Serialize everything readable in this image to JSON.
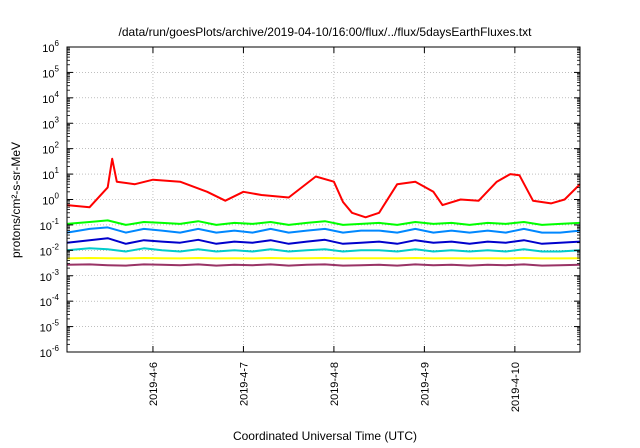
{
  "chart_data": {
    "type": "line",
    "title": "/data/run/goesPlots/archive/2019-04-10/16:00/flux/../flux/5daysEarthFluxes.txt",
    "xlabel": "Coordinated Universal Time (UTC)",
    "ylabel": "protons/cm²-s-sr-MeV",
    "y_scale": "log",
    "ylim": [
      1e-06,
      1000000.0
    ],
    "x_range_days": [
      5.05,
      10.72
    ],
    "x_ticks": [
      {
        "day": 6,
        "label": "2019-4-6"
      },
      {
        "day": 7,
        "label": "2019-4-7"
      },
      {
        "day": 8,
        "label": "2019-4-8"
      },
      {
        "day": 9,
        "label": "2019-4-9"
      },
      {
        "day": 10,
        "label": "2019-4-10"
      }
    ],
    "y_ticks": [
      {
        "exp": "6"
      },
      {
        "exp": "5"
      },
      {
        "exp": "4"
      },
      {
        "exp": "3"
      },
      {
        "exp": "2"
      },
      {
        "exp": "1"
      },
      {
        "exp": "0"
      },
      {
        "exp": "-1"
      },
      {
        "exp": "-2"
      },
      {
        "exp": "-3"
      },
      {
        "exp": "-4"
      },
      {
        "exp": "-5"
      },
      {
        "exp": "-6"
      }
    ],
    "grid": true,
    "series": [
      {
        "color": "#ff0000",
        "x": [
          5.05,
          5.3,
          5.5,
          5.55,
          5.6,
          5.8,
          6.0,
          6.3,
          6.6,
          6.8,
          7.0,
          7.2,
          7.5,
          7.8,
          8.0,
          8.1,
          8.2,
          8.35,
          8.5,
          8.7,
          8.9,
          9.1,
          9.2,
          9.4,
          9.6,
          9.8,
          9.95,
          10.05,
          10.2,
          10.4,
          10.55,
          10.72
        ],
        "y": [
          0.6,
          0.5,
          3,
          40,
          5,
          4,
          6,
          5,
          2,
          0.9,
          2,
          1.5,
          1.2,
          8,
          5,
          0.8,
          0.3,
          0.2,
          0.3,
          4,
          5,
          2,
          0.6,
          1,
          0.9,
          5,
          10,
          9,
          0.9,
          0.7,
          1,
          4
        ]
      },
      {
        "color": "#00ff00",
        "x": [
          5.05,
          5.3,
          5.5,
          5.7,
          5.9,
          6.1,
          6.3,
          6.5,
          6.7,
          6.9,
          7.1,
          7.3,
          7.5,
          7.7,
          7.9,
          8.1,
          8.3,
          8.5,
          8.7,
          8.9,
          9.1,
          9.3,
          9.5,
          9.7,
          9.9,
          10.1,
          10.3,
          10.5,
          10.72
        ],
        "y": [
          0.11,
          0.13,
          0.15,
          0.1,
          0.13,
          0.12,
          0.11,
          0.14,
          0.1,
          0.12,
          0.11,
          0.13,
          0.1,
          0.12,
          0.14,
          0.1,
          0.11,
          0.12,
          0.1,
          0.13,
          0.11,
          0.12,
          0.1,
          0.12,
          0.11,
          0.13,
          0.1,
          0.11,
          0.12
        ]
      },
      {
        "color": "#0088ff",
        "x": [
          5.05,
          5.3,
          5.5,
          5.7,
          5.9,
          6.1,
          6.3,
          6.5,
          6.7,
          6.9,
          7.1,
          7.3,
          7.5,
          7.7,
          7.9,
          8.1,
          8.3,
          8.5,
          8.7,
          8.9,
          9.1,
          9.3,
          9.5,
          9.7,
          9.9,
          10.1,
          10.3,
          10.5,
          10.72
        ],
        "y": [
          0.05,
          0.07,
          0.08,
          0.05,
          0.07,
          0.06,
          0.05,
          0.07,
          0.05,
          0.06,
          0.05,
          0.07,
          0.05,
          0.06,
          0.07,
          0.05,
          0.06,
          0.06,
          0.05,
          0.07,
          0.05,
          0.06,
          0.05,
          0.06,
          0.05,
          0.07,
          0.05,
          0.05,
          0.06
        ]
      },
      {
        "color": "#0000cc",
        "x": [
          5.05,
          5.3,
          5.5,
          5.7,
          5.9,
          6.1,
          6.3,
          6.5,
          6.7,
          6.9,
          7.1,
          7.3,
          7.5,
          7.7,
          7.9,
          8.1,
          8.3,
          8.5,
          8.7,
          8.9,
          9.1,
          9.3,
          9.5,
          9.7,
          9.9,
          10.1,
          10.3,
          10.5,
          10.72
        ],
        "y": [
          0.02,
          0.025,
          0.03,
          0.018,
          0.025,
          0.022,
          0.02,
          0.026,
          0.018,
          0.022,
          0.02,
          0.025,
          0.018,
          0.022,
          0.026,
          0.018,
          0.02,
          0.022,
          0.018,
          0.025,
          0.02,
          0.022,
          0.018,
          0.022,
          0.02,
          0.025,
          0.018,
          0.02,
          0.022
        ]
      },
      {
        "color": "#00cccc",
        "x": [
          5.05,
          5.3,
          5.5,
          5.7,
          5.9,
          6.1,
          6.3,
          6.5,
          6.7,
          6.9,
          7.1,
          7.3,
          7.5,
          7.7,
          7.9,
          8.1,
          8.3,
          8.5,
          8.7,
          8.9,
          9.1,
          9.3,
          9.5,
          9.7,
          9.9,
          10.1,
          10.3,
          10.5,
          10.72
        ],
        "y": [
          0.01,
          0.012,
          0.011,
          0.009,
          0.012,
          0.01,
          0.009,
          0.011,
          0.009,
          0.01,
          0.009,
          0.011,
          0.009,
          0.01,
          0.011,
          0.009,
          0.01,
          0.01,
          0.009,
          0.011,
          0.009,
          0.01,
          0.009,
          0.01,
          0.009,
          0.011,
          0.009,
          0.009,
          0.01
        ]
      },
      {
        "color": "#ffff00",
        "x": [
          5.05,
          5.3,
          5.5,
          5.7,
          5.9,
          6.1,
          6.3,
          6.5,
          6.7,
          6.9,
          7.1,
          7.3,
          7.5,
          7.7,
          7.9,
          8.1,
          8.3,
          8.5,
          8.7,
          8.9,
          9.1,
          9.3,
          9.5,
          9.7,
          9.9,
          10.1,
          10.3,
          10.5,
          10.72
        ],
        "y": [
          0.0048,
          0.005,
          0.0049,
          0.0048,
          0.005,
          0.0049,
          0.0048,
          0.005,
          0.0048,
          0.0049,
          0.0048,
          0.005,
          0.0048,
          0.0049,
          0.005,
          0.0048,
          0.0049,
          0.0049,
          0.0048,
          0.005,
          0.0048,
          0.0049,
          0.0048,
          0.0049,
          0.0048,
          0.005,
          0.0048,
          0.0048,
          0.0049
        ]
      },
      {
        "color": "#993366",
        "x": [
          5.05,
          5.3,
          5.5,
          5.7,
          5.9,
          6.1,
          6.3,
          6.5,
          6.7,
          6.9,
          7.1,
          7.3,
          7.5,
          7.7,
          7.9,
          8.1,
          8.3,
          8.5,
          8.7,
          8.9,
          9.1,
          9.3,
          9.5,
          9.7,
          9.9,
          10.1,
          10.3,
          10.5,
          10.72
        ],
        "y": [
          0.0027,
          0.0028,
          0.0026,
          0.0025,
          0.0028,
          0.0027,
          0.0026,
          0.0028,
          0.0025,
          0.0027,
          0.0026,
          0.0028,
          0.0025,
          0.0027,
          0.0028,
          0.0025,
          0.0026,
          0.0027,
          0.0025,
          0.0028,
          0.0026,
          0.0027,
          0.0025,
          0.0027,
          0.0026,
          0.0028,
          0.0025,
          0.0026,
          0.0027
        ]
      }
    ]
  }
}
